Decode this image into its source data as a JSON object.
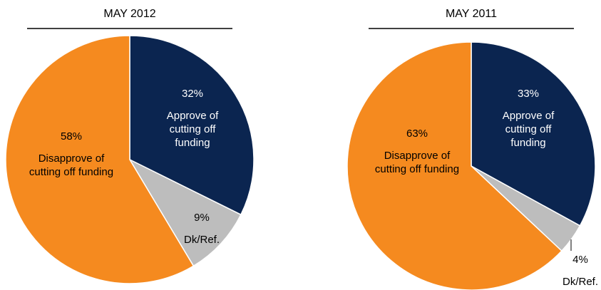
{
  "chart_data": [
    {
      "type": "pie",
      "title": "MAY 2012",
      "slices": [
        {
          "key": "approve",
          "value": 32,
          "pct_label": "32%",
          "label_lines": [
            "Approve of",
            "cutting off",
            "funding"
          ],
          "color": "#0b2550",
          "text_color": "#ffffff"
        },
        {
          "key": "dk",
          "value": 9,
          "pct_label": "9%",
          "label_lines": [
            "Dk/Ref."
          ],
          "color": "#bdbdbd",
          "text_color": "#000000"
        },
        {
          "key": "disapprove",
          "value": 58,
          "pct_label": "58%",
          "label_lines": [
            "Disapprove of",
            "cutting off funding"
          ],
          "color": "#f58a1f",
          "text_color": "#000000"
        }
      ]
    },
    {
      "type": "pie",
      "title": "MAY 2011",
      "slices": [
        {
          "key": "approve",
          "value": 33,
          "pct_label": "33%",
          "label_lines": [
            "Approve of",
            "cutting off",
            "funding"
          ],
          "color": "#0b2550",
          "text_color": "#ffffff"
        },
        {
          "key": "dk",
          "value": 4,
          "pct_label": "4%",
          "label_lines": [
            "Dk/Ref."
          ],
          "color": "#bdbdbd",
          "text_color": "#000000"
        },
        {
          "key": "disapprove",
          "value": 63,
          "pct_label": "63%",
          "label_lines": [
            "Disapprove of",
            "cutting off funding"
          ],
          "color": "#f58a1f",
          "text_color": "#000000"
        }
      ]
    }
  ]
}
